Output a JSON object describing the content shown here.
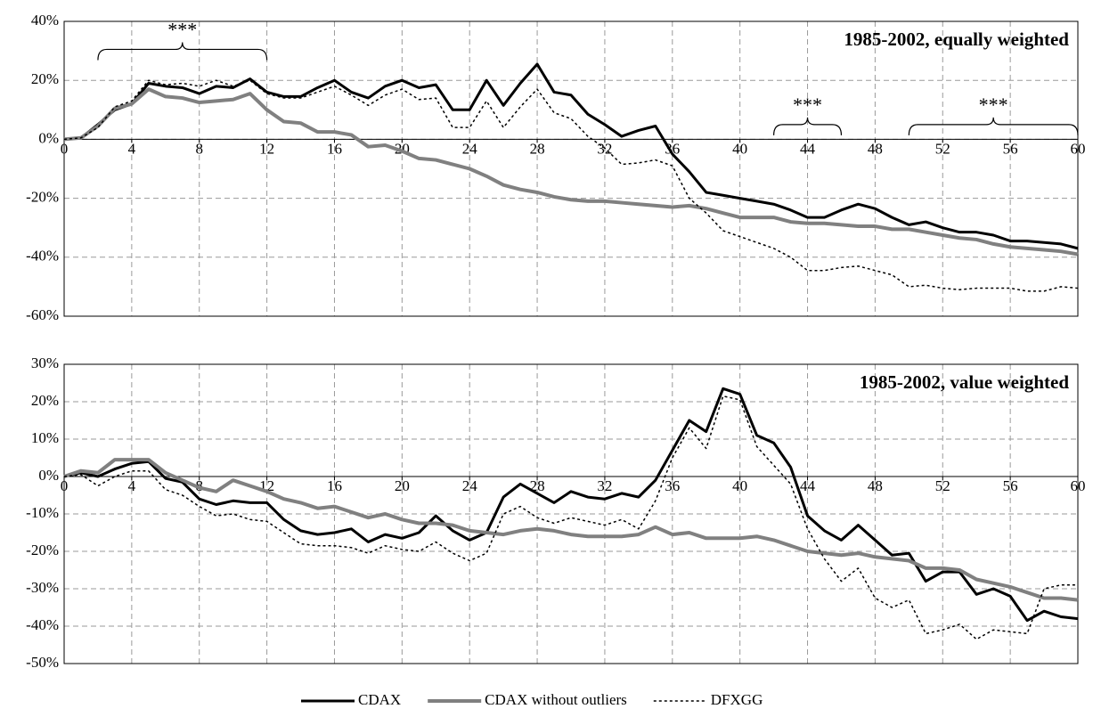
{
  "chart_data": [
    {
      "type": "line",
      "title": "1985-2002, equally weighted",
      "x": [
        0,
        1,
        2,
        3,
        4,
        5,
        6,
        7,
        8,
        9,
        10,
        11,
        12,
        13,
        14,
        15,
        16,
        17,
        18,
        19,
        20,
        21,
        22,
        23,
        24,
        25,
        26,
        27,
        28,
        29,
        30,
        31,
        32,
        33,
        34,
        35,
        36,
        37,
        38,
        39,
        40,
        41,
        42,
        43,
        44,
        45,
        46,
        47,
        48,
        49,
        50,
        51,
        52,
        53,
        54,
        55,
        56,
        57,
        58,
        59,
        60
      ],
      "xlim": [
        0,
        60
      ],
      "xticks": [
        0,
        4,
        8,
        12,
        16,
        20,
        24,
        28,
        32,
        36,
        40,
        44,
        48,
        52,
        56,
        60
      ],
      "ylim": [
        -60,
        40
      ],
      "yticks": [
        {
          "value": -60,
          "label": "-60%"
        },
        {
          "value": -40,
          "label": "-40%"
        },
        {
          "value": -20,
          "label": "-20%"
        },
        {
          "value": 0,
          "label": "0%"
        },
        {
          "value": 20,
          "label": "20%"
        },
        {
          "value": 40,
          "label": "40%"
        }
      ],
      "grid": true,
      "annotations": [
        {
          "text": "***",
          "x": [
            2,
            12
          ]
        },
        {
          "text": "***",
          "x": [
            42,
            46
          ]
        },
        {
          "text": "***",
          "x": [
            50,
            60
          ]
        }
      ],
      "series": [
        {
          "name": "CDAX",
          "color": "#000000",
          "dashed": false,
          "values": [
            0,
            0.5,
            5,
            10,
            12,
            19,
            18,
            17.5,
            15.5,
            18,
            17.5,
            20.5,
            16,
            14.5,
            14.5,
            17.5,
            20,
            16,
            14,
            18,
            20,
            17.5,
            18.5,
            10,
            10,
            20,
            11.5,
            19,
            25.5,
            16,
            15,
            8.5,
            5,
            1,
            3,
            4.5,
            -5,
            -11,
            -18,
            -19,
            -20,
            -21,
            -22,
            -24,
            -26.5,
            -26.5,
            -24,
            -22,
            -23.5,
            -26.5,
            -29,
            -28,
            -30,
            -31.5,
            -31.5,
            -32.5,
            -34.5,
            -34.5,
            -35,
            -35.5,
            -37
          ]
        },
        {
          "name": "CDAX without outliers",
          "color": "#808080",
          "dashed": false,
          "values": [
            0,
            0.5,
            4.5,
            10.5,
            12,
            17,
            14.5,
            14,
            12.5,
            13,
            13.5,
            15.5,
            10,
            6,
            5.5,
            2.5,
            2.5,
            1.5,
            -2.5,
            -2,
            -4,
            -6.5,
            -7,
            -8.5,
            -10,
            -12.5,
            -15.5,
            -17,
            -18,
            -19.5,
            -20.5,
            -21,
            -21,
            -21.5,
            -22,
            -22.5,
            -23,
            -22.5,
            -23.5,
            -25,
            -26.5,
            -26.5,
            -26.5,
            -28,
            -28.5,
            -28.5,
            -29,
            -29.5,
            -29.5,
            -30.5,
            -30.5,
            -31.5,
            -32.5,
            -33.5,
            -34,
            -35.5,
            -36.5,
            -37,
            -37.5,
            -38,
            -39
          ]
        },
        {
          "name": "DFXGG",
          "color": "#000000",
          "dashed": true,
          "values": [
            0,
            0.5,
            4,
            11,
            13,
            20,
            18.5,
            19,
            18,
            20,
            18,
            20,
            15.5,
            14,
            14,
            16,
            18,
            15,
            11.5,
            15,
            17,
            13.5,
            14,
            4,
            4,
            13,
            4,
            11,
            17,
            9,
            7,
            1,
            -3,
            -8.5,
            -8,
            -7,
            -9,
            -20,
            -25,
            -31,
            -33,
            -35,
            -37,
            -40,
            -44.5,
            -44.5,
            -43.5,
            -43,
            -44.5,
            -46,
            -50,
            -49.5,
            -50.5,
            -51,
            -50.5,
            -50.5,
            -50.5,
            -51.5,
            -51.5,
            -50,
            -50.5
          ]
        }
      ]
    },
    {
      "type": "line",
      "title": "1985-2002, value weighted",
      "x": [
        0,
        1,
        2,
        3,
        4,
        5,
        6,
        7,
        8,
        9,
        10,
        11,
        12,
        13,
        14,
        15,
        16,
        17,
        18,
        19,
        20,
        21,
        22,
        23,
        24,
        25,
        26,
        27,
        28,
        29,
        30,
        31,
        32,
        33,
        34,
        35,
        36,
        37,
        38,
        39,
        40,
        41,
        42,
        43,
        44,
        45,
        46,
        47,
        48,
        49,
        50,
        51,
        52,
        53,
        54,
        55,
        56,
        57,
        58,
        59,
        60
      ],
      "xlim": [
        0,
        60
      ],
      "xticks": [
        0,
        4,
        8,
        12,
        16,
        20,
        24,
        28,
        32,
        36,
        40,
        44,
        48,
        52,
        56,
        60
      ],
      "ylim": [
        -50,
        30
      ],
      "yticks": [
        {
          "value": -50,
          "label": "-50%"
        },
        {
          "value": -40,
          "label": "-40%"
        },
        {
          "value": -30,
          "label": "-30%"
        },
        {
          "value": -20,
          "label": "-20%"
        },
        {
          "value": -10,
          "label": "-10%"
        },
        {
          "value": 0,
          "label": "0%"
        },
        {
          "value": 10,
          "label": "10%"
        },
        {
          "value": 20,
          "label": "20%"
        },
        {
          "value": 30,
          "label": "30%"
        }
      ],
      "grid": true,
      "series": [
        {
          "color": "#000000",
          "dashed": false,
          "values": [
            0,
            1,
            0,
            2,
            3.5,
            4,
            -0.5,
            -1.5,
            -6,
            -7.5,
            -6.5,
            -7,
            -7,
            -11.5,
            -14.5,
            -15.5,
            -15,
            -14,
            -17.5,
            -15.5,
            -16.5,
            -15,
            -10.5,
            -14.5,
            -17,
            -15,
            -5.5,
            -2,
            -4.5,
            -7,
            -4,
            -5.5,
            -6,
            -4.5,
            -5.5,
            -1,
            7,
            15,
            12,
            23.5,
            22,
            11,
            9,
            2.5,
            -10.5,
            -14.5,
            -17,
            -13,
            -17,
            -21,
            -20.5,
            -28,
            -25.5,
            -25.5,
            -31.5,
            -30,
            -32,
            -38.5,
            -36,
            -37.5,
            -38
          ]
        },
        {
          "color": "#808080",
          "dashed": false,
          "values": [
            0,
            1.5,
            1,
            4.5,
            4.5,
            4.5,
            1,
            -1,
            -3,
            -4,
            -1,
            -2.5,
            -4,
            -6,
            -7,
            -8.5,
            -8,
            -9.5,
            -11,
            -10,
            -11.5,
            -12.5,
            -12.5,
            -13,
            -14.5,
            -15,
            -15.5,
            -14.5,
            -14,
            -14.5,
            -15.5,
            -16,
            -16,
            -16,
            -15.5,
            -13.5,
            -15.5,
            -15,
            -16.5,
            -16.5,
            -16.5,
            -16,
            -17,
            -18.5,
            -20,
            -20.5,
            -21,
            -20.5,
            -21.5,
            -22,
            -22.5,
            -24.5,
            -24.5,
            -25,
            -27.5,
            -28.5,
            -29.5,
            -31,
            -32.5,
            -32.5,
            -33
          ]
        },
        {
          "color": "#000000",
          "dashed": true,
          "values": [
            0,
            0.5,
            -2.5,
            0,
            1.5,
            1.5,
            -3.5,
            -5,
            -8,
            -10.5,
            -10,
            -11.5,
            -12,
            -15,
            -18,
            -18.5,
            -18.5,
            -19,
            -20.5,
            -18.5,
            -19.5,
            -20,
            -17.5,
            -20.5,
            -22.5,
            -20.5,
            -10,
            -8,
            -11,
            -12.5,
            -11,
            -12,
            -13,
            -11.5,
            -14,
            -6.5,
            5,
            13,
            7.5,
            21.5,
            20.5,
            8,
            3,
            -2,
            -14,
            -22,
            -28,
            -24.5,
            -32.5,
            -35,
            -33,
            -42,
            -41,
            -39.5,
            -43.5,
            -41,
            -41.5,
            -42,
            -30,
            -29,
            -29
          ]
        }
      ]
    }
  ]
}
